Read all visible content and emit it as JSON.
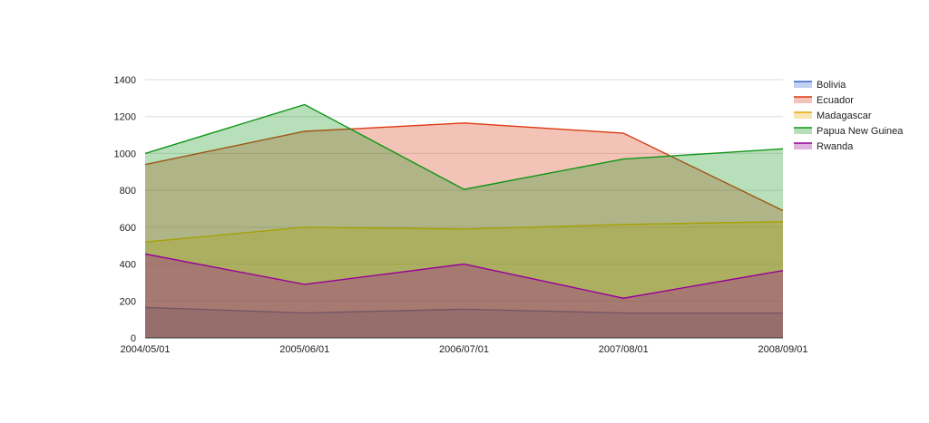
{
  "chart_data": {
    "type": "area",
    "title": "",
    "xlabel": "",
    "ylabel": "",
    "x": [
      "2004/05/01",
      "2005/06/01",
      "2006/07/01",
      "2007/08/01",
      "2008/09/01"
    ],
    "ylim": [
      0,
      1400
    ],
    "yticks": [
      0,
      200,
      400,
      600,
      800,
      1000,
      1200,
      1400
    ],
    "grid": true,
    "legend_position": "right",
    "series": [
      {
        "name": "Bolivia",
        "values": [
          165,
          135,
          155,
          135,
          135
        ],
        "color": "#3366cc"
      },
      {
        "name": "Ecuador",
        "values": [
          940,
          1120,
          1165,
          1110,
          690
        ],
        "color": "#dc3912"
      },
      {
        "name": "Madagascar",
        "values": [
          520,
          600,
          590,
          615,
          630
        ],
        "color": "#e6a800"
      },
      {
        "name": "Papua New Guinea",
        "values": [
          1000,
          1265,
          805,
          970,
          1025
        ],
        "color": "#109618"
      },
      {
        "name": "Rwanda",
        "values": [
          455,
          290,
          400,
          215,
          365
        ],
        "color": "#990099"
      }
    ]
  }
}
